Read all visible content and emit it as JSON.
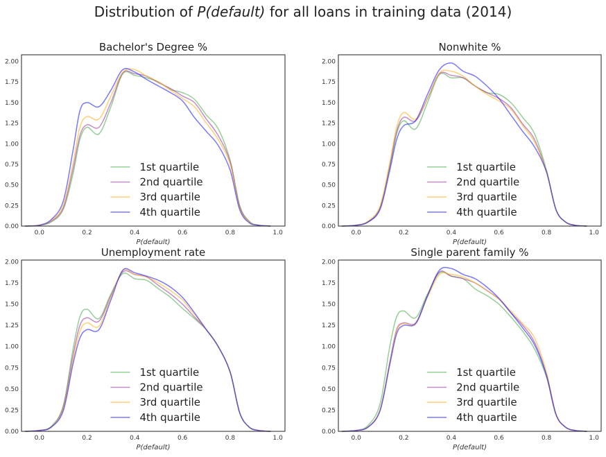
{
  "figure": {
    "suptitle_pre": "Distribution of ",
    "suptitle_var": "P(default)",
    "suptitle_post": " for all loans in training data (2014)"
  },
  "colors": {
    "1st quartile": "#4caf50",
    "2nd quartile": "#a040a0",
    "3rd quartile": "#ffb020",
    "4th quartile": "#2020ff"
  },
  "chart_data": [
    {
      "type": "line",
      "title": "Bachelor's Degree %",
      "xlabel": "P(default)",
      "ylabel": "",
      "xlim": [
        -0.075,
        1.03
      ],
      "ylim": [
        0,
        2.08
      ],
      "xticks": [
        "0.0",
        "0.2",
        "0.4",
        "0.6",
        "0.8",
        "1.0"
      ],
      "yticks": [
        "0.00",
        "0.25",
        "0.50",
        "0.75",
        "1.00",
        "1.25",
        "1.50",
        "1.75",
        "2.00"
      ],
      "legend": "lower-center",
      "x": [
        -0.06,
        0.0,
        0.05,
        0.1,
        0.14,
        0.17,
        0.2,
        0.25,
        0.3,
        0.35,
        0.4,
        0.45,
        0.5,
        0.55,
        0.6,
        0.65,
        0.7,
        0.75,
        0.8,
        0.84,
        0.88,
        0.92,
        0.97
      ],
      "series": [
        {
          "name": "1st quartile",
          "values": [
            0.0,
            0.01,
            0.05,
            0.2,
            0.62,
            1.05,
            1.2,
            1.12,
            1.45,
            1.85,
            1.83,
            1.8,
            1.75,
            1.66,
            1.62,
            1.54,
            1.35,
            1.18,
            0.8,
            0.25,
            0.06,
            0.01,
            0.0
          ]
        },
        {
          "name": "2nd quartile",
          "values": [
            0.0,
            0.01,
            0.06,
            0.22,
            0.68,
            1.1,
            1.23,
            1.2,
            1.5,
            1.86,
            1.85,
            1.82,
            1.74,
            1.67,
            1.58,
            1.5,
            1.3,
            1.1,
            0.78,
            0.24,
            0.05,
            0.01,
            0.0
          ]
        },
        {
          "name": "3rd quartile",
          "values": [
            0.0,
            0.01,
            0.07,
            0.25,
            0.75,
            1.2,
            1.33,
            1.3,
            1.58,
            1.87,
            1.9,
            1.82,
            1.75,
            1.65,
            1.55,
            1.45,
            1.25,
            1.05,
            0.75,
            0.22,
            0.05,
            0.01,
            0.0
          ]
        },
        {
          "name": "4th quartile",
          "values": [
            0.0,
            0.01,
            0.08,
            0.3,
            0.9,
            1.4,
            1.5,
            1.45,
            1.65,
            1.9,
            1.87,
            1.78,
            1.7,
            1.62,
            1.52,
            1.32,
            1.15,
            0.98,
            0.68,
            0.2,
            0.04,
            0.01,
            0.0
          ]
        }
      ]
    },
    {
      "type": "line",
      "title": "Nonwhite %",
      "xlabel": "P(default)",
      "ylabel": "",
      "xlim": [
        -0.075,
        1.03
      ],
      "ylim": [
        0,
        2.08
      ],
      "xticks": [
        "0.0",
        "0.2",
        "0.4",
        "0.6",
        "0.8",
        "1.0"
      ],
      "yticks": [
        "0.00",
        "0.25",
        "0.50",
        "0.75",
        "1.00",
        "1.25",
        "1.50",
        "1.75",
        "2.00"
      ],
      "legend": "lower-center",
      "x": [
        -0.06,
        0.0,
        0.05,
        0.1,
        0.14,
        0.17,
        0.2,
        0.25,
        0.3,
        0.35,
        0.4,
        0.45,
        0.5,
        0.55,
        0.6,
        0.65,
        0.7,
        0.75,
        0.8,
        0.84,
        0.88,
        0.92,
        0.97
      ],
      "series": [
        {
          "name": "1st quartile",
          "values": [
            0.0,
            0.01,
            0.05,
            0.22,
            0.7,
            1.12,
            1.28,
            1.18,
            1.5,
            1.84,
            1.8,
            1.8,
            1.7,
            1.62,
            1.6,
            1.5,
            1.32,
            1.12,
            0.68,
            0.2,
            0.05,
            0.01,
            0.0
          ]
        },
        {
          "name": "2nd quartile",
          "values": [
            0.0,
            0.01,
            0.05,
            0.22,
            0.72,
            1.15,
            1.32,
            1.28,
            1.55,
            1.85,
            1.83,
            1.8,
            1.7,
            1.62,
            1.55,
            1.44,
            1.24,
            1.05,
            0.66,
            0.2,
            0.05,
            0.01,
            0.0
          ]
        },
        {
          "name": "3rd quartile",
          "values": [
            0.0,
            0.01,
            0.06,
            0.24,
            0.75,
            1.2,
            1.38,
            1.3,
            1.55,
            1.86,
            1.88,
            1.82,
            1.7,
            1.6,
            1.52,
            1.42,
            1.22,
            1.02,
            0.66,
            0.2,
            0.05,
            0.01,
            0.0
          ]
        },
        {
          "name": "4th quartile",
          "values": [
            0.0,
            0.01,
            0.05,
            0.2,
            0.66,
            1.05,
            1.22,
            1.28,
            1.6,
            1.9,
            1.98,
            1.88,
            1.82,
            1.7,
            1.55,
            1.35,
            1.15,
            0.96,
            0.66,
            0.2,
            0.05,
            0.01,
            0.0
          ]
        }
      ]
    },
    {
      "type": "line",
      "title": "Unemployment rate",
      "xlabel": "P(default)",
      "ylabel": "",
      "xlim": [
        -0.075,
        1.03
      ],
      "ylim": [
        0,
        2.02
      ],
      "xticks": [
        "0.0",
        "0.2",
        "0.4",
        "0.6",
        "0.8",
        "1.0"
      ],
      "yticks": [
        "0.00",
        "0.25",
        "0.50",
        "0.75",
        "1.00",
        "1.25",
        "1.50",
        "1.75",
        "2.00"
      ],
      "legend": "lower-center",
      "x": [
        -0.06,
        0.0,
        0.05,
        0.1,
        0.14,
        0.17,
        0.2,
        0.25,
        0.3,
        0.35,
        0.4,
        0.45,
        0.5,
        0.55,
        0.6,
        0.65,
        0.7,
        0.75,
        0.8,
        0.84,
        0.88,
        0.92,
        0.97
      ],
      "series": [
        {
          "name": "1st quartile",
          "values": [
            0.0,
            0.01,
            0.06,
            0.3,
            0.95,
            1.35,
            1.44,
            1.33,
            1.62,
            1.86,
            1.8,
            1.78,
            1.68,
            1.58,
            1.45,
            1.33,
            1.2,
            1.0,
            0.7,
            0.22,
            0.05,
            0.01,
            0.0
          ]
        },
        {
          "name": "2nd quartile",
          "values": [
            0.0,
            0.01,
            0.05,
            0.28,
            0.88,
            1.25,
            1.34,
            1.3,
            1.6,
            1.88,
            1.85,
            1.82,
            1.72,
            1.62,
            1.5,
            1.35,
            1.2,
            1.0,
            0.7,
            0.22,
            0.05,
            0.01,
            0.0
          ]
        },
        {
          "name": "3rd quartile",
          "values": [
            0.0,
            0.01,
            0.05,
            0.26,
            0.82,
            1.18,
            1.28,
            1.24,
            1.58,
            1.9,
            1.85,
            1.82,
            1.75,
            1.66,
            1.55,
            1.38,
            1.2,
            1.0,
            0.7,
            0.22,
            0.05,
            0.01,
            0.0
          ]
        },
        {
          "name": "4th quartile",
          "values": [
            0.0,
            0.01,
            0.05,
            0.24,
            0.78,
            1.1,
            1.2,
            1.2,
            1.55,
            1.9,
            1.87,
            1.83,
            1.78,
            1.7,
            1.58,
            1.4,
            1.2,
            1.0,
            0.7,
            0.22,
            0.05,
            0.01,
            0.0
          ]
        }
      ]
    },
    {
      "type": "line",
      "title": "Single parent family %",
      "xlabel": "P(default)",
      "ylabel": "",
      "xlim": [
        -0.075,
        1.03
      ],
      "ylim": [
        0,
        2.02
      ],
      "xticks": [
        "0.0",
        "0.2",
        "0.4",
        "0.6",
        "0.8",
        "1.0"
      ],
      "yticks": [
        "0.00",
        "0.25",
        "0.50",
        "0.75",
        "1.00",
        "1.25",
        "1.50",
        "1.75",
        "2.00"
      ],
      "legend": "lower-center",
      "x": [
        -0.06,
        0.0,
        0.05,
        0.1,
        0.14,
        0.17,
        0.2,
        0.25,
        0.3,
        0.35,
        0.4,
        0.45,
        0.5,
        0.55,
        0.6,
        0.65,
        0.7,
        0.75,
        0.8,
        0.84,
        0.88,
        0.92,
        0.97
      ],
      "series": [
        {
          "name": "1st quartile",
          "values": [
            0.0,
            0.01,
            0.07,
            0.32,
            0.98,
            1.35,
            1.42,
            1.34,
            1.62,
            1.87,
            1.83,
            1.8,
            1.68,
            1.6,
            1.5,
            1.35,
            1.18,
            0.97,
            0.64,
            0.2,
            0.05,
            0.01,
            0.0
          ]
        },
        {
          "name": "2nd quartile",
          "values": [
            0.0,
            0.01,
            0.05,
            0.25,
            0.8,
            1.2,
            1.28,
            1.28,
            1.6,
            1.88,
            1.83,
            1.8,
            1.75,
            1.66,
            1.56,
            1.4,
            1.25,
            1.05,
            0.67,
            0.2,
            0.05,
            0.01,
            0.0
          ]
        },
        {
          "name": "3rd quartile",
          "values": [
            0.0,
            0.01,
            0.05,
            0.25,
            0.78,
            1.18,
            1.27,
            1.27,
            1.58,
            1.85,
            1.85,
            1.82,
            1.75,
            1.66,
            1.56,
            1.42,
            1.27,
            1.1,
            0.7,
            0.21,
            0.05,
            0.01,
            0.0
          ]
        },
        {
          "name": "4th quartile",
          "values": [
            0.0,
            0.01,
            0.05,
            0.24,
            0.77,
            1.15,
            1.25,
            1.27,
            1.6,
            1.9,
            1.92,
            1.85,
            1.8,
            1.7,
            1.57,
            1.4,
            1.22,
            1.02,
            0.66,
            0.2,
            0.05,
            0.01,
            0.0
          ]
        }
      ]
    }
  ]
}
